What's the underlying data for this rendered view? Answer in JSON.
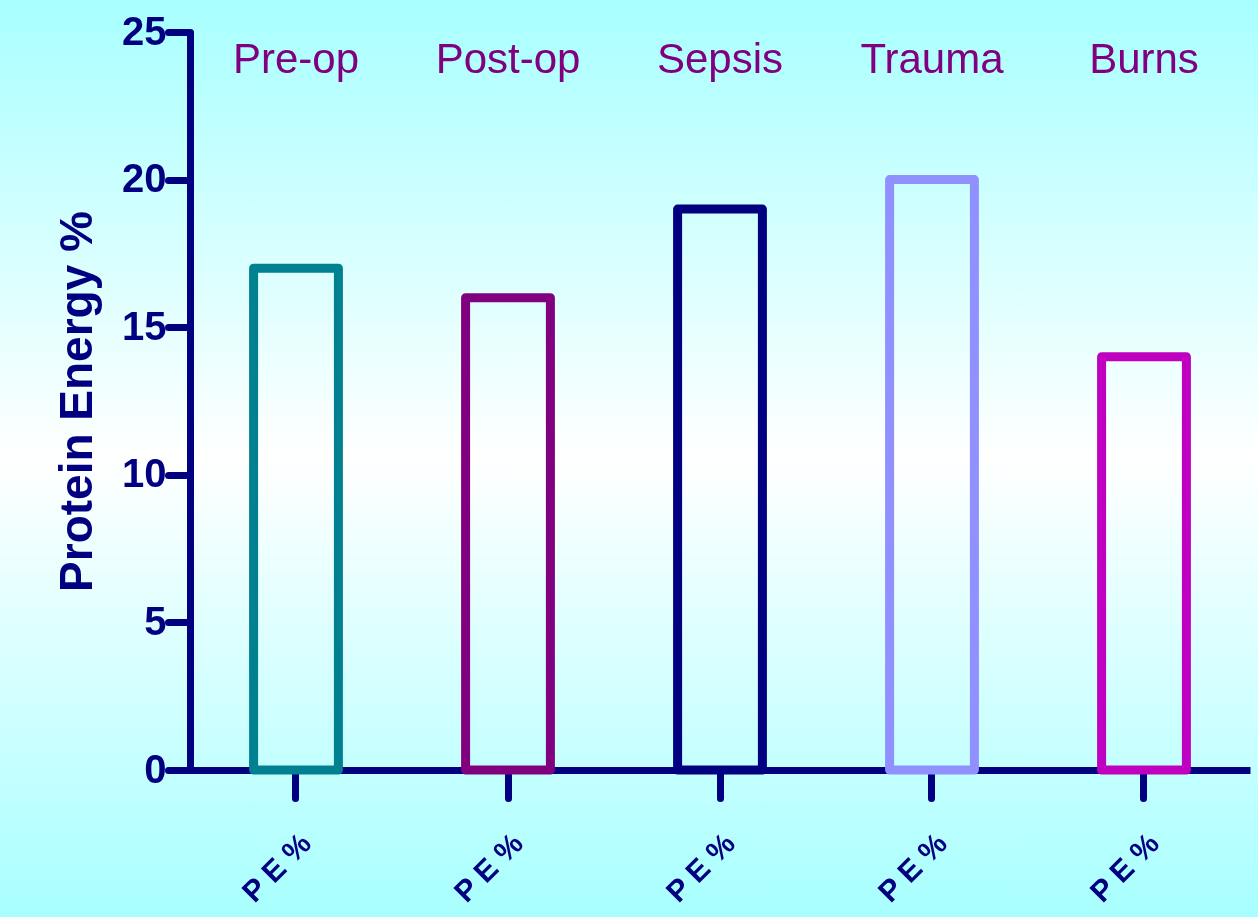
{
  "chart_data": {
    "type": "bar",
    "ylabel": "Protein Energy %",
    "categories": [
      "P E %",
      "P E %",
      "P E %",
      "P E %",
      "P E %"
    ],
    "values": [
      17,
      16,
      19,
      20,
      14
    ],
    "colors": [
      "#008090",
      "#800080",
      "#000080",
      "#9090ff",
      "#c000c0"
    ],
    "annotations": [
      "Pre-op",
      "Post-op",
      "Sepsis",
      "Trauma",
      "Burns"
    ],
    "ylim": [
      0,
      25
    ],
    "yticks": [
      0,
      5,
      10,
      15,
      20,
      25
    ],
    "grid": false
  }
}
